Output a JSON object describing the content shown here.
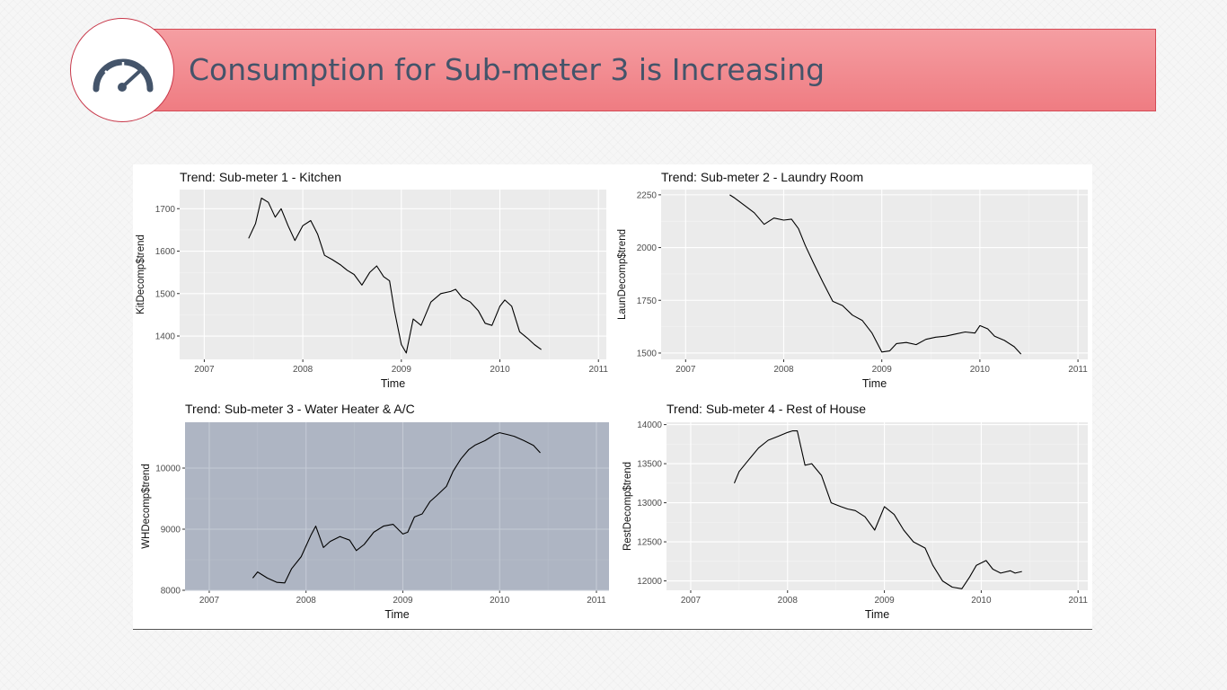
{
  "slide": {
    "title": "Consumption for Sub-meter 3 is Increasing",
    "icon": "speedometer-icon",
    "colors": {
      "banner": "#f18a8f",
      "banner_border": "#d44a55",
      "title_text": "#44546a",
      "panel_bg": "#ebebeb",
      "highlight_panel_bg": "#aeb5c3",
      "line": "#000000"
    }
  },
  "chart_data": [
    {
      "type": "line",
      "title": "Trend: Sub-meter 1 - Kitchen",
      "xlabel": "Time",
      "ylabel": "KitDecomp$trend",
      "xlim": [
        2006.75,
        2011.08
      ],
      "ylim": [
        1345,
        1745
      ],
      "xticks": [
        2007,
        2008,
        2009,
        2010,
        2011
      ],
      "yticks": [
        1400,
        1500,
        1600,
        1700
      ],
      "grid": true,
      "highlight": false,
      "series": [
        {
          "x": [
            2007.45,
            2007.52,
            2007.58,
            2007.65,
            2007.72,
            2007.78,
            2007.85,
            2007.92,
            2008.0,
            2008.08,
            2008.15,
            2008.22,
            2008.3,
            2008.38,
            2008.45,
            2008.52,
            2008.6,
            2008.68,
            2008.75,
            2008.82,
            2008.88,
            2008.93,
            2009.0,
            2009.05,
            2009.12,
            2009.2,
            2009.3,
            2009.4,
            2009.5,
            2009.55,
            2009.62,
            2009.7,
            2009.78,
            2009.85,
            2009.92,
            2010.0,
            2010.05,
            2010.12,
            2010.2,
            2010.28,
            2010.35,
            2010.42
          ],
          "y": [
            1630,
            1665,
            1725,
            1715,
            1680,
            1700,
            1660,
            1625,
            1660,
            1672,
            1640,
            1590,
            1580,
            1568,
            1555,
            1545,
            1520,
            1550,
            1565,
            1540,
            1530,
            1460,
            1380,
            1360,
            1440,
            1425,
            1480,
            1500,
            1505,
            1510,
            1490,
            1480,
            1460,
            1430,
            1425,
            1470,
            1485,
            1470,
            1410,
            1395,
            1380,
            1368
          ]
        }
      ]
    },
    {
      "type": "line",
      "title": "Trend: Sub-meter 2 - Laundry Room",
      "xlabel": "Time",
      "ylabel": "LaunDecomp$trend",
      "xlim": [
        2006.75,
        2011.1
      ],
      "ylim": [
        1470,
        2275
      ],
      "xticks": [
        2007,
        2008,
        2009,
        2010,
        2011
      ],
      "yticks": [
        1500,
        1750,
        2000,
        2250
      ],
      "grid": true,
      "highlight": false,
      "series": [
        {
          "x": [
            2007.45,
            2007.5,
            2007.6,
            2007.7,
            2007.8,
            2007.9,
            2008.0,
            2008.08,
            2008.15,
            2008.22,
            2008.3,
            2008.4,
            2008.5,
            2008.6,
            2008.7,
            2008.8,
            2008.9,
            2009.0,
            2009.08,
            2009.15,
            2009.25,
            2009.35,
            2009.45,
            2009.55,
            2009.65,
            2009.75,
            2009.85,
            2009.95,
            2010.0,
            2010.08,
            2010.15,
            2010.25,
            2010.35,
            2010.42
          ],
          "y": [
            2250,
            2235,
            2200,
            2165,
            2110,
            2140,
            2130,
            2135,
            2090,
            2010,
            1930,
            1835,
            1745,
            1725,
            1680,
            1655,
            1595,
            1505,
            1510,
            1545,
            1550,
            1540,
            1565,
            1575,
            1580,
            1590,
            1600,
            1595,
            1630,
            1615,
            1580,
            1560,
            1530,
            1495
          ]
        }
      ]
    },
    {
      "type": "line",
      "title": "Trend: Sub-meter 3 - Water Heater & A/C",
      "xlabel": "Time",
      "ylabel": "WHDecomp$trend",
      "xlim": [
        2006.75,
        2011.13
      ],
      "ylim": [
        8000,
        10750
      ],
      "xticks": [
        2007,
        2008,
        2009,
        2010,
        2011
      ],
      "yticks": [
        8000,
        9000,
        10000
      ],
      "grid": true,
      "highlight": true,
      "series": [
        {
          "x": [
            2007.45,
            2007.5,
            2007.6,
            2007.7,
            2007.78,
            2007.85,
            2007.95,
            2008.05,
            2008.1,
            2008.18,
            2008.25,
            2008.35,
            2008.45,
            2008.52,
            2008.6,
            2008.7,
            2008.8,
            2008.9,
            2009.0,
            2009.05,
            2009.12,
            2009.2,
            2009.28,
            2009.35,
            2009.45,
            2009.52,
            2009.6,
            2009.68,
            2009.75,
            2009.85,
            2009.95,
            2010.0,
            2010.08,
            2010.15,
            2010.25,
            2010.35,
            2010.42
          ],
          "y": [
            8200,
            8300,
            8200,
            8130,
            8120,
            8350,
            8550,
            8900,
            9050,
            8700,
            8800,
            8880,
            8820,
            8650,
            8750,
            8950,
            9050,
            9080,
            8920,
            8950,
            9200,
            9250,
            9450,
            9550,
            9700,
            9950,
            10150,
            10300,
            10380,
            10450,
            10550,
            10580,
            10550,
            10520,
            10450,
            10370,
            10250
          ]
        }
      ]
    },
    {
      "type": "line",
      "title": "Trend: Sub-meter 4 - Rest of House",
      "xlabel": "Time",
      "ylabel": "RestDecomp$trend",
      "xlim": [
        2006.75,
        2011.1
      ],
      "ylim": [
        11880,
        14030
      ],
      "xticks": [
        2007,
        2008,
        2009,
        2010,
        2011
      ],
      "yticks": [
        12000,
        12500,
        13000,
        13500,
        14000
      ],
      "grid": true,
      "highlight": false,
      "series": [
        {
          "x": [
            2007.45,
            2007.5,
            2007.6,
            2007.7,
            2007.8,
            2007.9,
            2008.0,
            2008.05,
            2008.1,
            2008.18,
            2008.25,
            2008.35,
            2008.45,
            2008.55,
            2008.62,
            2008.7,
            2008.8,
            2008.9,
            2009.0,
            2009.1,
            2009.2,
            2009.3,
            2009.42,
            2009.5,
            2009.6,
            2009.7,
            2009.8,
            2009.88,
            2009.95,
            2010.05,
            2010.12,
            2010.2,
            2010.3,
            2010.35,
            2010.42
          ],
          "y": [
            13250,
            13400,
            13550,
            13700,
            13800,
            13850,
            13900,
            13920,
            13920,
            13480,
            13500,
            13350,
            13000,
            12950,
            12920,
            12900,
            12820,
            12650,
            12950,
            12850,
            12650,
            12500,
            12420,
            12200,
            12000,
            11920,
            11900,
            12050,
            12200,
            12260,
            12150,
            12100,
            12130,
            12100,
            12120
          ]
        }
      ]
    }
  ]
}
